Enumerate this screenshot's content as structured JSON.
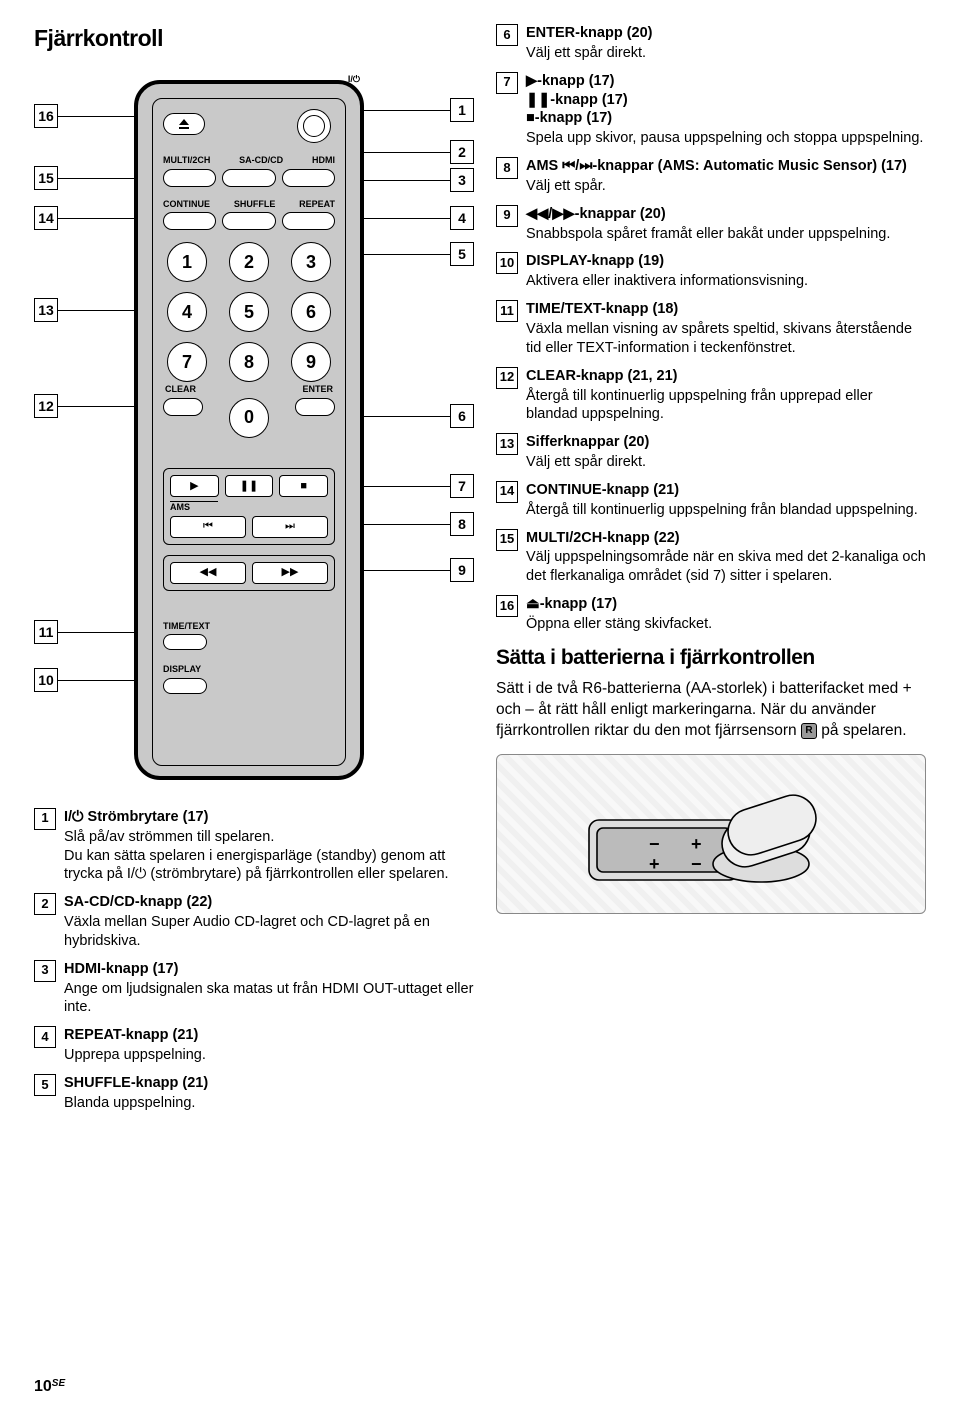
{
  "page": {
    "number": "10",
    "lang": "SE"
  },
  "headings": {
    "title": "Fjärrkontroll",
    "sub": "Sätta i batterierna i fjärrkontrollen"
  },
  "remote": {
    "power_label": "",
    "labels_row1": [
      "MULTI/2CH",
      "SA-CD/CD",
      "HDMI"
    ],
    "labels_row2": [
      "CONTINUE",
      "SHUFFLE",
      "REPEAT"
    ],
    "numbers": [
      "1",
      "2",
      "3",
      "4",
      "5",
      "6",
      "7",
      "8",
      "9"
    ],
    "clear": "CLEAR",
    "enter": "ENTER",
    "zero": "0",
    "ams": "AMS",
    "timetext": "TIME/TEXT",
    "display": "DISPLAY"
  },
  "callouts_left": [
    "16",
    "15",
    "14",
    "13",
    "12",
    "11",
    "10"
  ],
  "callouts_right": [
    "1",
    "2",
    "3",
    "4",
    "5",
    "6",
    "7",
    "8",
    "9"
  ],
  "items_left": [
    {
      "n": "1",
      "title": "I/⏻ Strömbrytare (17)",
      "desc": "Slå på/av strömmen till spelaren.\nDu kan sätta spelaren i energisparläge (standby) genom att trycka på I/⏻ (strömbrytare) på fjärrkontrollen eller spelaren."
    },
    {
      "n": "2",
      "title": "SA-CD/CD-knapp (22)",
      "desc": "Växla mellan Super Audio CD-lagret och CD-lagret på en hybridskiva."
    },
    {
      "n": "3",
      "title": "HDMI-knapp (17)",
      "desc": "Ange om ljudsignalen ska matas ut från HDMI OUT-uttaget eller inte."
    },
    {
      "n": "4",
      "title": "REPEAT-knapp (21)",
      "desc": "Upprepa uppspelning."
    },
    {
      "n": "5",
      "title": "SHUFFLE-knapp (21)",
      "desc": "Blanda uppspelning."
    }
  ],
  "items_right": [
    {
      "n": "6",
      "title": "ENTER-knapp (20)",
      "desc": "Välj ett spår direkt."
    },
    {
      "n": "7",
      "title": "▶-knapp (17)\n❚❚-knapp (17)\n■-knapp (17)",
      "desc": "Spela upp skivor, pausa uppspelning och stoppa uppspelning."
    },
    {
      "n": "8",
      "title": "AMS ⏮/⏭-knappar (AMS: Automatic Music Sensor) (17)",
      "desc": "Välj ett spår."
    },
    {
      "n": "9",
      "title": "◀◀/▶▶-knappar (20)",
      "desc": "Snabbspola spåret framåt eller bakåt under uppspelning."
    },
    {
      "n": "10",
      "title": "DISPLAY-knapp (19)",
      "desc": "Aktivera eller inaktivera informationsvisning."
    },
    {
      "n": "11",
      "title": "TIME/TEXT-knapp (18)",
      "desc": "Växla mellan visning av spårets speltid, skivans återstående tid eller TEXT-information i teckenfönstret."
    },
    {
      "n": "12",
      "title": "CLEAR-knapp (21, 21)",
      "desc": "Återgå till kontinuerlig uppspelning från upprepad eller blandad uppspelning."
    },
    {
      "n": "13",
      "title": "Sifferknappar (20)",
      "desc": "Välj ett spår direkt."
    },
    {
      "n": "14",
      "title": "CONTINUE-knapp (21)",
      "desc": "Återgå till kontinuerlig uppspelning från blandad uppspelning."
    },
    {
      "n": "15",
      "title": "MULTI/2CH-knapp (22)",
      "desc": "Välj uppspelningsområde när en skiva med det 2-kanaliga och det flerkanaliga området (sid 7) sitter i spelaren."
    },
    {
      "n": "16",
      "title": "⏏-knapp (17)",
      "desc": "Öppna eller stäng skivfacket."
    }
  ],
  "body_right": "Sätt i de två R6-batterierna (AA-storlek) i batterifacket med + och – åt rätt håll enligt markeringarna. När du använder fjärrkontrollen riktar du den mot fjärrsensorn R på spelaren."
}
